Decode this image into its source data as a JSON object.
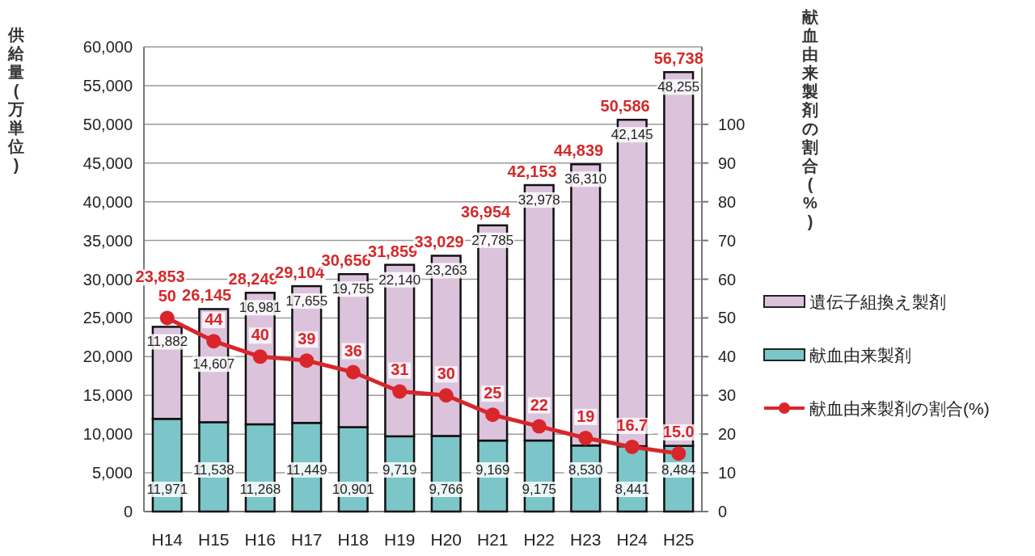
{
  "chart_data": {
    "type": "bar",
    "stacked": true,
    "categories": [
      "H14",
      "H15",
      "H16",
      "H17",
      "H18",
      "H19",
      "H20",
      "H21",
      "H22",
      "H23",
      "H24",
      "H25"
    ],
    "series": [
      {
        "name": "献血由来製剤",
        "color": "#7cc6c9",
        "values": [
          11971,
          11538,
          11268,
          11449,
          10901,
          9719,
          9766,
          9169,
          9175,
          8530,
          8441,
          8484
        ],
        "value_labels": [
          "11,971",
          "11,538",
          "11,268",
          "11,449",
          "10,901",
          "9,719",
          "9,766",
          "9,169",
          "9,175",
          "8,530",
          "8,441",
          "8,484"
        ]
      },
      {
        "name": "遺伝子組換え製剤",
        "color": "#dcc3dc",
        "values": [
          11882,
          14607,
          16981,
          17655,
          19755,
          22140,
          23263,
          27785,
          32978,
          36310,
          42145,
          48255
        ],
        "value_labels": [
          "11,882",
          "14,607",
          "16,981",
          "17,655",
          "19,755",
          "22,140",
          "23,263",
          "27,785",
          "32,978",
          "36,310",
          "42,145",
          "48,255"
        ]
      },
      {
        "name": "献血由来製剤の割合(%)",
        "type": "line",
        "axis": "y2",
        "color": "#d9262b",
        "values": [
          50,
          44,
          40,
          39,
          36,
          31,
          30,
          25,
          22,
          19,
          16.7,
          15.0
        ],
        "value_labels": [
          "50",
          "44",
          "40",
          "39",
          "36",
          "31",
          "30",
          "25",
          "22",
          "19",
          "16.7",
          "15.0"
        ]
      }
    ],
    "totals": [
      "23,853",
      "26,145",
      "28,249",
      "29,104",
      "30,656",
      "31,859",
      "33,029",
      "36,954",
      "42,153",
      "44,839",
      "50,586",
      "56,738"
    ],
    "ylabel": "供給量(万単位)",
    "y2label": "献血由来製剤の割合(%)",
    "ylim": [
      0,
      60000
    ],
    "yticks": [
      0,
      {
        "value": 5000,
        "label": "5,000"
      },
      {
        "value": 10000,
        "label": "10,000"
      },
      {
        "value": 15000,
        "label": "15,000"
      },
      {
        "value": 20000,
        "label": "20,000"
      },
      {
        "value": 25000,
        "label": "25,000"
      },
      {
        "value": 30000,
        "label": "30,000"
      },
      {
        "value": 35000,
        "label": "35,000"
      },
      {
        "value": 40000,
        "label": "40,000"
      },
      {
        "value": 45000,
        "label": "45,000"
      },
      {
        "value": 50000,
        "label": "50,000"
      },
      {
        "value": 55000,
        "label": "55,000"
      },
      {
        "value": 60000,
        "label": "60,000"
      }
    ],
    "y2lim": [
      0,
      120
    ],
    "y2ticks": [
      0,
      10,
      20,
      30,
      40,
      50,
      60,
      70,
      80,
      90,
      100
    ],
    "grid": "y",
    "legend": "right",
    "marker": "circle"
  }
}
